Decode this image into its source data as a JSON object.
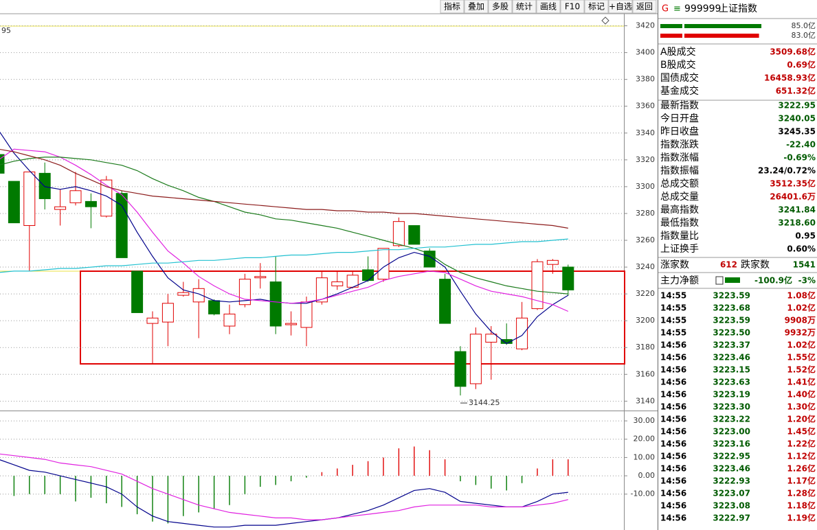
{
  "toolbar": {
    "buttons": [
      "指标",
      "叠加",
      "多股",
      "统计",
      "画线",
      "F10",
      "标记",
      "+自选",
      "返回"
    ]
  },
  "top_left_label": "95",
  "chart_data": [
    {
      "type": "candlestick",
      "ylim": [
        3133,
        3429
      ],
      "yticks": [
        3140,
        3160,
        3180,
        3200,
        3220,
        3240,
        3260,
        3280,
        3300,
        3320,
        3340,
        3360,
        3380,
        3400,
        3420
      ],
      "grid": true,
      "up_color": "#e00000",
      "down_color": "#007a00",
      "open": [
        3324,
        3304,
        3271,
        3310,
        3283,
        3288,
        3289,
        3278,
        3295,
        3237,
        3198,
        3199,
        3219,
        3214,
        3215,
        3196,
        3212,
        3232,
        3229,
        3197,
        3195,
        3214,
        3226,
        3225,
        3238,
        3231,
        3256,
        3271,
        3252,
        3231,
        3177,
        3153,
        3184,
        3186,
        3179,
        3209,
        3242,
        3240.05
      ],
      "high": [
        3324,
        3304,
        3311,
        3318,
        3298,
        3311,
        3295,
        3308,
        3297,
        3237,
        3207,
        3220,
        3229,
        3231,
        3216,
        3212,
        3235,
        3243,
        3248,
        3207,
        3218,
        3237,
        3237,
        3237,
        3248,
        3254,
        3277,
        3271,
        3254,
        3235,
        3181,
        3195,
        3196,
        3198,
        3214,
        3246,
        3246,
        3241.84
      ],
      "low": [
        3310,
        3273,
        3237,
        3283,
        3271,
        3286,
        3269,
        3277,
        3247,
        3206,
        3168,
        3181,
        3218,
        3187,
        3204,
        3190,
        3210,
        3224,
        3190,
        3189,
        3181,
        3212,
        3223,
        3224,
        3229,
        3229,
        3255,
        3257,
        3240,
        3198,
        3144.25,
        3149,
        3156,
        3182,
        3178,
        3208,
        3235,
        3218.6
      ],
      "close": [
        3310,
        3273,
        3311,
        3291,
        3285,
        3297,
        3285,
        3305,
        3247,
        3206,
        3202,
        3213,
        3221,
        3224,
        3205,
        3205,
        3231,
        3233,
        3196,
        3198,
        3214,
        3232,
        3229,
        3234,
        3230,
        3254,
        3274,
        3257,
        3240,
        3198,
        3151,
        3190,
        3190,
        3183,
        3202,
        3244,
        3245,
        3222.95
      ],
      "lines": [
        {
          "color": "#00008b",
          "values": [
            3342,
            3325,
            3312,
            3300,
            3298,
            3300,
            3297,
            3293,
            3286,
            3266,
            3248,
            3232,
            3223,
            3220,
            3215,
            3214,
            3215,
            3216,
            3214,
            3213,
            3213,
            3216,
            3220,
            3225,
            3230,
            3240,
            3247,
            3251,
            3248,
            3240,
            3222,
            3205,
            3192,
            3183,
            3189,
            3203,
            3212,
            3219
          ]
        },
        {
          "color": "#e020e0",
          "values": [
            3320,
            3328,
            3327,
            3326,
            3322,
            3316,
            3309,
            3301,
            3294,
            3281,
            3266,
            3252,
            3243,
            3233,
            3226,
            3220,
            3216,
            3215,
            3214,
            3213,
            3214,
            3216,
            3219,
            3222,
            3225,
            3230,
            3233,
            3235,
            3237,
            3236,
            3231,
            3226,
            3222,
            3220,
            3218,
            3215,
            3212,
            3207
          ]
        },
        {
          "color": "#1a7a1a",
          "values": [
            3316,
            3319,
            3321,
            3322,
            3322,
            3321,
            3320,
            3318,
            3316,
            3312,
            3306,
            3301,
            3297,
            3292,
            3289,
            3285,
            3281,
            3279,
            3276,
            3275,
            3273,
            3271,
            3269,
            3266,
            3263,
            3260,
            3257,
            3254,
            3250,
            3242,
            3236,
            3232,
            3229,
            3226,
            3224,
            3222,
            3221,
            3220
          ]
        },
        {
          "color": "#8b1a1a",
          "values": [
            3328,
            3326,
            3323,
            3320,
            3316,
            3310,
            3305,
            3300,
            3297,
            3295,
            3293,
            3292,
            3291,
            3290,
            3289,
            3288,
            3287,
            3286,
            3285,
            3284,
            3283,
            3283,
            3282,
            3282,
            3281,
            3281,
            3280,
            3280,
            3279,
            3278,
            3277,
            3276,
            3275,
            3274,
            3273,
            3272,
            3271,
            3269
          ]
        },
        {
          "color": "#20c0d0",
          "values": [
            3236,
            3237,
            3237,
            3238,
            3239,
            3239,
            3240,
            3241,
            3241,
            3242,
            3243,
            3243,
            3244,
            3245,
            3245,
            3246,
            3247,
            3247,
            3248,
            3249,
            3249,
            3250,
            3251,
            3251,
            3252,
            3253,
            3253,
            3254,
            3255,
            3255,
            3256,
            3257,
            3257,
            3258,
            3259,
            3259,
            3260,
            3261
          ]
        }
      ],
      "annotation": "3144.25"
    },
    {
      "type": "macd",
      "ylim": [
        -29.6,
        34.9
      ],
      "yticks": [
        {
          "value": 30,
          "label": "30.00"
        },
        {
          "value": 20,
          "label": "20.00"
        },
        {
          "value": 10,
          "label": "10.00"
        },
        {
          "value": 0,
          "label": "0.00"
        },
        {
          "value": -10,
          "label": "-10.00"
        }
      ],
      "grid": true,
      "up_color": "#e00000",
      "down_color": "#007a00",
      "hist": [
        -10,
        -11,
        -10,
        -10,
        -10,
        -14,
        -12,
        -15,
        -17,
        -21,
        -25,
        -26,
        -22,
        -20,
        -18,
        -16,
        -10,
        -6,
        -5,
        -3,
        -1,
        2,
        4,
        6,
        8,
        10,
        15,
        16,
        14,
        9,
        -3,
        -5,
        -7,
        -8,
        -4,
        4,
        9,
        9
      ],
      "lines": [
        {
          "color": "#00008b",
          "values": [
            9,
            6,
            3,
            2,
            0,
            -2,
            -4,
            -6,
            -10,
            -17,
            -22,
            -25,
            -26,
            -27,
            -28,
            -28,
            -27,
            -27,
            -27,
            -26,
            -25,
            -24,
            -23,
            -21,
            -19,
            -16,
            -12,
            -8,
            -7,
            -9,
            -14,
            -15,
            -16,
            -17,
            -17,
            -14,
            -10,
            -9
          ]
        },
        {
          "color": "#e020e0",
          "values": [
            12,
            11,
            10,
            9,
            7,
            6,
            5,
            3,
            1,
            -3,
            -7,
            -10,
            -13,
            -16,
            -18,
            -20,
            -21,
            -22,
            -23,
            -23,
            -24,
            -24,
            -23,
            -22,
            -21,
            -20,
            -19,
            -17,
            -16,
            -16,
            -16,
            -16,
            -17,
            -17,
            -17,
            -16,
            -15,
            -13
          ]
        }
      ]
    }
  ],
  "quote_panel": {
    "mark": "G",
    "code": "999999",
    "name": "上证指数",
    "flow_bars": [
      {
        "value": 85,
        "label": "85.0亿",
        "color": "#007a00"
      },
      {
        "value": 83,
        "label": "83.0亿",
        "color": "#e00000"
      }
    ],
    "stats": [
      {
        "label": "A股成交",
        "value": "3509.68亿",
        "color": "#c00000"
      },
      {
        "label": "B股成交",
        "value": "0.69亿",
        "color": "#c00000"
      },
      {
        "label": "国债成交",
        "value": "16458.93亿",
        "color": "#c00000"
      },
      {
        "label": "基金成交",
        "value": "651.32亿",
        "color": "#c00000"
      },
      {
        "label": "最新指数",
        "value": "3222.95",
        "color": "#005a00"
      },
      {
        "label": "今日开盘",
        "value": "3240.05",
        "color": "#005a00"
      },
      {
        "label": "昨日收盘",
        "value": "3245.35",
        "color": "#000000"
      },
      {
        "label": "指数涨跌",
        "value": "-22.40",
        "color": "#005a00"
      },
      {
        "label": "指数涨幅",
        "value": "-0.69%",
        "color": "#005a00"
      },
      {
        "label": "指数振幅",
        "value": "23.24/0.72%",
        "color": "#000000"
      },
      {
        "label": "总成交额",
        "value": "3512.35亿",
        "color": "#c00000"
      },
      {
        "label": "总成交量",
        "value": "26401.6万",
        "color": "#c00000"
      },
      {
        "label": "最高指数",
        "value": "3241.84",
        "color": "#005a00"
      },
      {
        "label": "最低指数",
        "value": "3218.60",
        "color": "#005a00"
      },
      {
        "label": "指数量比",
        "value": "0.95",
        "color": "#000000"
      },
      {
        "label": "上证换手",
        "value": "0.60%",
        "color": "#000000"
      }
    ],
    "breadth": {
      "up_label": "涨家数",
      "up": "612",
      "down_label": "跌家数",
      "down": "1541"
    },
    "main_flow": {
      "label": "主力净额",
      "value": "-100.9亿",
      "pct": "-3%"
    },
    "trades": [
      [
        "14:55",
        "3223.59",
        "1.08亿"
      ],
      [
        "14:55",
        "3223.68",
        "1.02亿"
      ],
      [
        "14:55",
        "3223.59",
        "9908万"
      ],
      [
        "14:55",
        "3223.50",
        "9932万"
      ],
      [
        "14:56",
        "3223.37",
        "1.02亿"
      ],
      [
        "14:56",
        "3223.46",
        "1.55亿"
      ],
      [
        "14:56",
        "3223.15",
        "1.52亿"
      ],
      [
        "14:56",
        "3223.63",
        "1.41亿"
      ],
      [
        "14:56",
        "3223.19",
        "1.40亿"
      ],
      [
        "14:56",
        "3223.30",
        "1.30亿"
      ],
      [
        "14:56",
        "3223.22",
        "1.20亿"
      ],
      [
        "14:56",
        "3223.00",
        "1.45亿"
      ],
      [
        "14:56",
        "3223.16",
        "1.22亿"
      ],
      [
        "14:56",
        "3222.95",
        "1.12亿"
      ],
      [
        "14:56",
        "3223.46",
        "1.26亿"
      ],
      [
        "14:56",
        "3222.93",
        "1.17亿"
      ],
      [
        "14:56",
        "3223.07",
        "1.28亿"
      ],
      [
        "14:56",
        "3223.08",
        "1.18亿"
      ],
      [
        "14:56",
        "3222.97",
        "1.19亿"
      ]
    ]
  }
}
